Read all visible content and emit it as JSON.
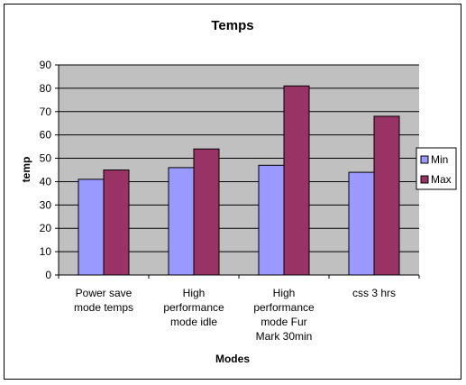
{
  "chart_data": {
    "type": "bar",
    "title": "Temps",
    "xlabel": "Modes",
    "ylabel": "temp",
    "ylim": [
      0,
      90
    ],
    "yticks": [
      0,
      10,
      20,
      30,
      40,
      50,
      60,
      70,
      80,
      90
    ],
    "grid": true,
    "legend_position": "right",
    "categories": [
      "Power save mode temps",
      "High performance mode idle",
      "High performance mode Fur Mark 30min",
      "css 3 hrs"
    ],
    "series": [
      {
        "name": "Min",
        "color": "#9999ff",
        "values": [
          41,
          46,
          47,
          44
        ]
      },
      {
        "name": "Max",
        "color": "#993366",
        "values": [
          45,
          54,
          81,
          68
        ]
      }
    ],
    "plot_background": "#c0c0c0"
  }
}
